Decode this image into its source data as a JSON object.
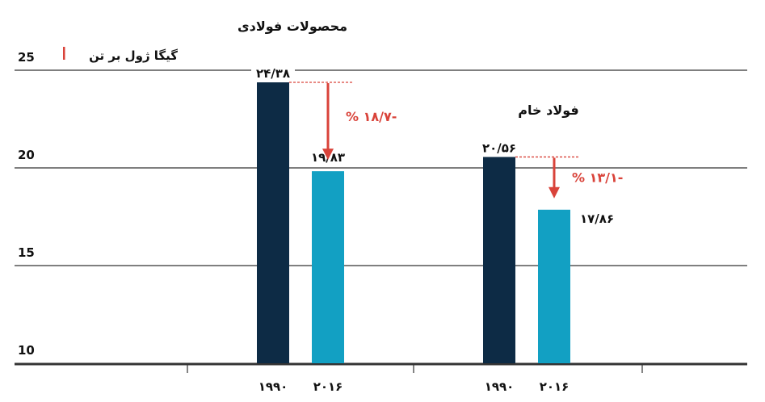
{
  "chart_data": {
    "type": "bar",
    "unit_label": "گیگا ژول بر تن",
    "y_ticks": [
      {
        "value": 25,
        "label": "25"
      },
      {
        "value": 20,
        "label": "20"
      },
      {
        "value": 15,
        "label": "15"
      },
      {
        "value": 10,
        "label": "10"
      }
    ],
    "ylim": [
      10,
      25
    ],
    "groups": [
      {
        "title": "محصولات فولادی",
        "change_label": "% ۱۸/۷-",
        "bars": [
          {
            "year": "۱۹۹۰",
            "value": 24.38,
            "value_label": "۲۴/۳۸",
            "color": "#0d2b45"
          },
          {
            "year": "۲۰۱۶",
            "value": 19.83,
            "value_label": "۱۹/۸۳",
            "color": "#12a0c3"
          }
        ]
      },
      {
        "title": "فولاد خام",
        "change_label": "% ۱۳/۱-",
        "bars": [
          {
            "year": "۱۹۹۰",
            "value": 20.56,
            "value_label": "۲۰/۵۶",
            "color": "#0d2b45"
          },
          {
            "year": "۲۰۱۶",
            "value": 17.86,
            "value_label": "۱۷/۸۶",
            "color": "#12a0c3"
          }
        ]
      }
    ],
    "accent_color": "#d9433a"
  }
}
